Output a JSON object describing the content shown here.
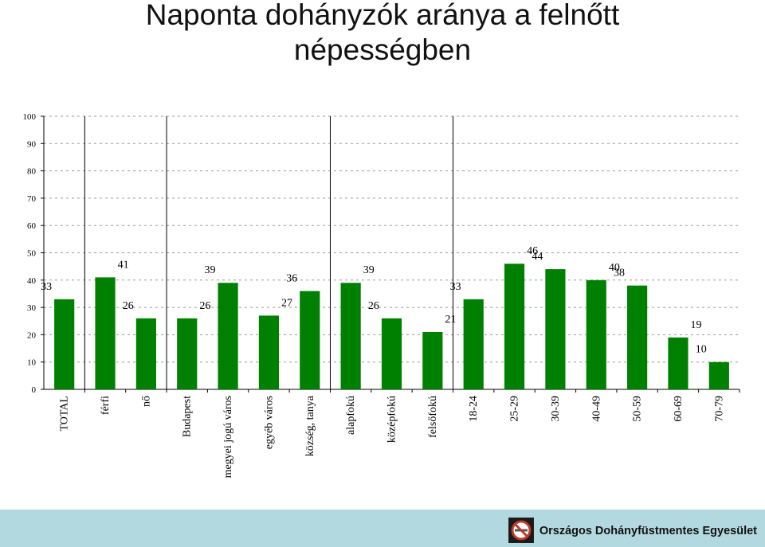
{
  "title_line1": "Naponta dohányzók aránya a felnőtt",
  "title_line2": "népességben",
  "footer": {
    "organization": "Országos Dohányfüstmentes Egyesület"
  },
  "colors": {
    "bar": "#008000",
    "grid": "#999999",
    "footer": "#b3d9e0"
  },
  "chart_data": {
    "type": "bar",
    "title": "Naponta dohányzók aránya a felnőtt népességben",
    "xlabel": "",
    "ylabel": "",
    "ylim": [
      0,
      100
    ],
    "yticks": [
      0,
      10,
      20,
      30,
      40,
      50,
      60,
      70,
      80,
      90,
      100
    ],
    "grid": true,
    "categories": [
      "TOTAL",
      "férfi",
      "nő",
      "Budapest",
      "megyei jogú város",
      "egyéb város",
      "község, tanya",
      "alapfokú",
      "középfokú",
      "felsőfokú",
      "18-24",
      "25-29",
      "30-39",
      "40-49",
      "50-59",
      "60-69",
      "70-79"
    ],
    "values": [
      33,
      41,
      26,
      26,
      39,
      27,
      36,
      39,
      26,
      21,
      33,
      46,
      44,
      40,
      38,
      19,
      10
    ],
    "group_separators_after": [
      "TOTAL",
      "nő",
      "község, tanya",
      "felsőfokú"
    ]
  }
}
